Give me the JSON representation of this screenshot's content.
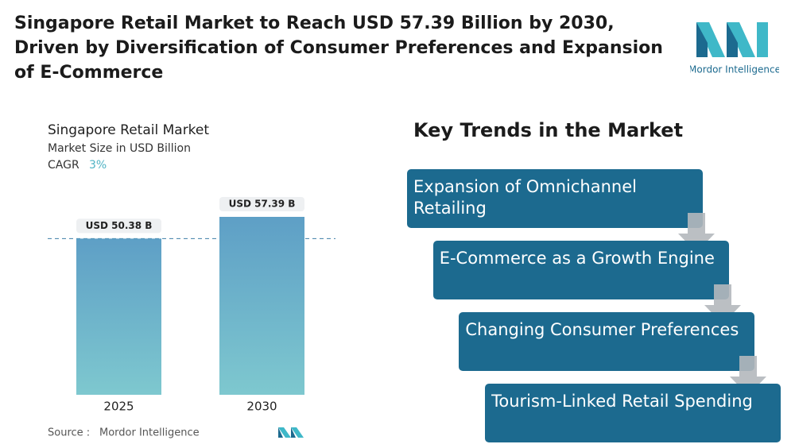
{
  "header": {
    "title": "Singapore Retail Market to Reach USD 57.39 Billion by 2030, Driven by Diversification of Consumer Preferences and Expansion of E-Commerce",
    "logo": "Mordor Intelligence"
  },
  "chart_data": {
    "type": "bar",
    "title": "Singapore Retail Market",
    "subtitle": "Market Size in USD Billion",
    "cagr": {
      "label": "CAGR",
      "value": "3%"
    },
    "categories": [
      "2025",
      "2030"
    ],
    "values": [
      50.38,
      57.39
    ],
    "value_labels": [
      "USD 50.38 B",
      "USD 57.39 B"
    ],
    "color": "#5e9fc6"
  },
  "trends": {
    "title": "Key Trends in the Market",
    "items": [
      "Expansion of Omnichannel Retailing",
      "E-Commerce as a Growth Engine",
      "Changing Consumer Preferences",
      "Tourism-Linked Retail Spending"
    ]
  },
  "source": {
    "label": "Source :",
    "name": "Mordor Intelligence"
  }
}
